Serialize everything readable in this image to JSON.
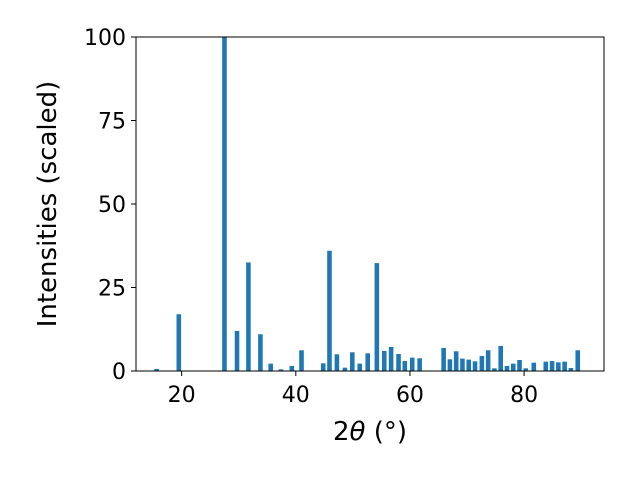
{
  "chart_data": {
    "type": "bar",
    "title": "",
    "xlabel_prefix": "2",
    "xlabel_symbol": "θ",
    "xlabel_suffix": " (°)",
    "ylabel": "Intensities (scaled)",
    "xlim": [
      12,
      94
    ],
    "ylim": [
      0,
      100
    ],
    "xticks": [
      20,
      40,
      60,
      80
    ],
    "yticks": [
      0,
      25,
      50,
      75,
      100
    ],
    "grid": false,
    "color": "#1f77b4",
    "bar_width": 0.8,
    "x": [
      15.6,
      19.5,
      27.5,
      29.7,
      31.7,
      33.8,
      35.6,
      37.4,
      39.3,
      41.0,
      44.8,
      45.9,
      47.2,
      48.6,
      49.9,
      51.2,
      52.6,
      54.2,
      55.5,
      56.7,
      58.0,
      59.1,
      60.4,
      61.7,
      65.9,
      67.0,
      68.1,
      69.2,
      70.3,
      71.4,
      72.6,
      73.7,
      74.8,
      75.9,
      77.0,
      78.1,
      79.2,
      80.3,
      81.7,
      83.8,
      84.9,
      86.0,
      87.1,
      88.2,
      89.4
    ],
    "values": [
      0.6,
      17,
      100,
      12,
      32.5,
      11,
      2.2,
      0.5,
      1.5,
      6.2,
      2.3,
      36,
      5,
      1,
      5.6,
      2.2,
      5.3,
      32.3,
      6,
      7.2,
      5.1,
      3,
      4,
      3.8,
      6.9,
      3.5,
      5.9,
      3.7,
      3.4,
      2.9,
      4.5,
      6.2,
      0.8,
      7.5,
      1.5,
      2.2,
      3.3,
      0.8,
      2.5,
      2.8,
      3,
      2.6,
      2.8,
      0.9,
      6.2
    ]
  }
}
